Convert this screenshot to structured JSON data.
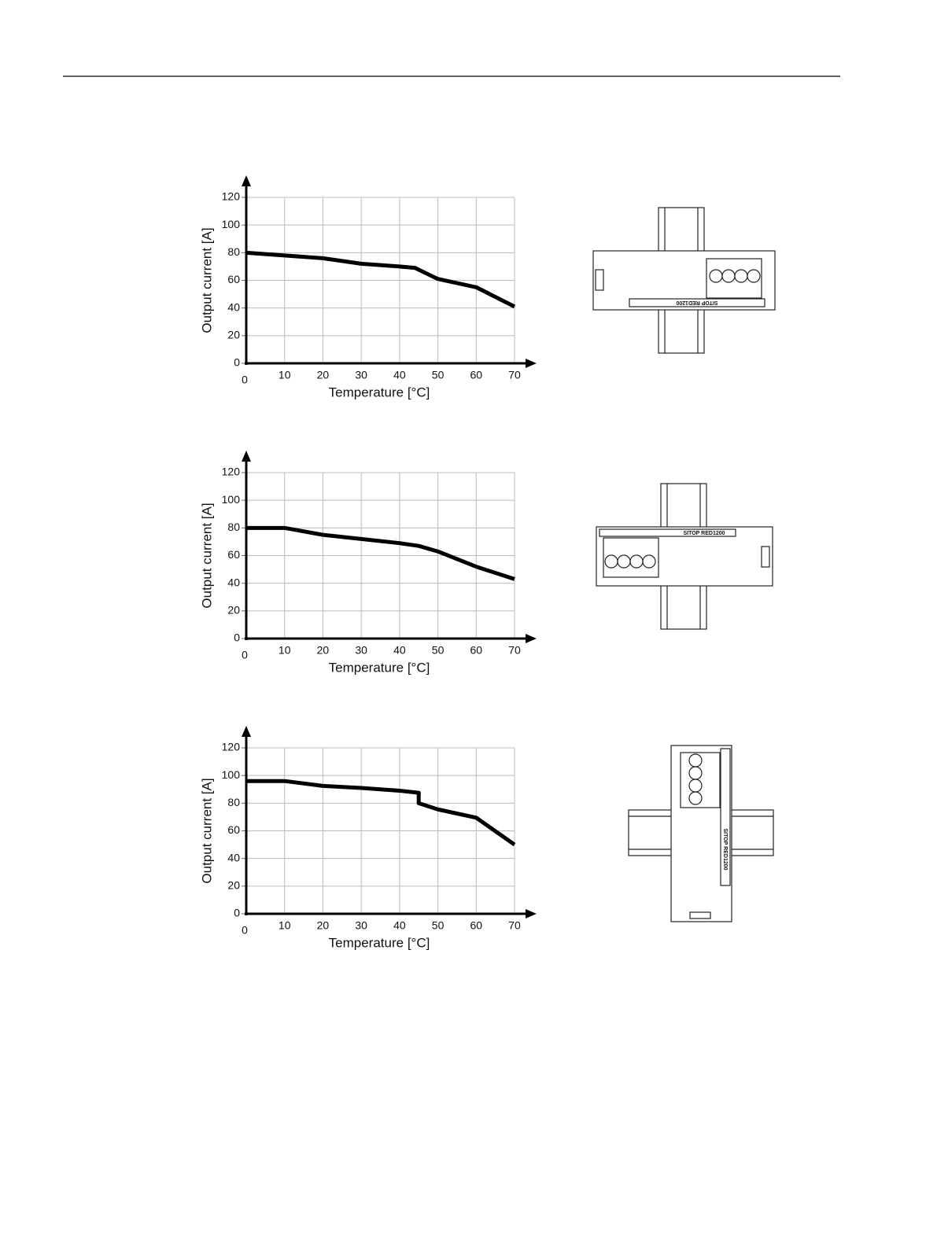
{
  "chart_data": [
    {
      "type": "line",
      "xlabel": "Temperature [°C]",
      "ylabel": "Output current [A]",
      "x": [
        0,
        10,
        20,
        30,
        40,
        44,
        50,
        60,
        70
      ],
      "series": [
        {
          "color": "#000000",
          "values": [
            80,
            78,
            76,
            72,
            70,
            69,
            61,
            55,
            41
          ]
        }
      ],
      "xlim": [
        0,
        70
      ],
      "xticks": [
        0,
        10,
        20,
        30,
        40,
        50,
        60,
        70
      ],
      "ylim": [
        0,
        120
      ],
      "yticks": [
        0,
        20,
        40,
        60,
        80,
        100,
        120
      ],
      "grid": true
    },
    {
      "type": "line",
      "xlabel": "Temperature [°C]",
      "ylabel": "Output current [A]",
      "x": [
        0,
        10,
        20,
        30,
        40,
        45,
        50,
        60,
        65,
        70
      ],
      "series": [
        {
          "color": "#000000",
          "values": [
            80,
            80,
            75,
            72,
            69,
            67,
            63,
            52,
            47.5,
            43
          ]
        }
      ],
      "xlim": [
        0,
        70
      ],
      "xticks": [
        0,
        10,
        20,
        30,
        40,
        50,
        60,
        70
      ],
      "ylim": [
        0,
        120
      ],
      "yticks": [
        0,
        20,
        40,
        60,
        80,
        100,
        120
      ],
      "grid": true
    },
    {
      "type": "line",
      "xlabel": "Temperature [°C]",
      "ylabel": "Output current [A]",
      "x": [
        0,
        10,
        20,
        30,
        40,
        45,
        45,
        50,
        60,
        70
      ],
      "series": [
        {
          "color": "#000000",
          "values": [
            96,
            96,
            92.5,
            91,
            89,
            87.5,
            80,
            75.5,
            69.5,
            50
          ]
        }
      ],
      "xlim": [
        0,
        70
      ],
      "xticks": [
        0,
        10,
        20,
        30,
        40,
        50,
        60,
        70
      ],
      "ylim": [
        0,
        120
      ],
      "yticks": [
        0,
        20,
        40,
        60,
        80,
        100,
        120
      ],
      "grid": true
    }
  ],
  "devices": [
    {
      "label": "SITOP RED1200"
    },
    {
      "label": "SITOP RED1200"
    },
    {
      "label": "SITOP RED1200"
    }
  ]
}
